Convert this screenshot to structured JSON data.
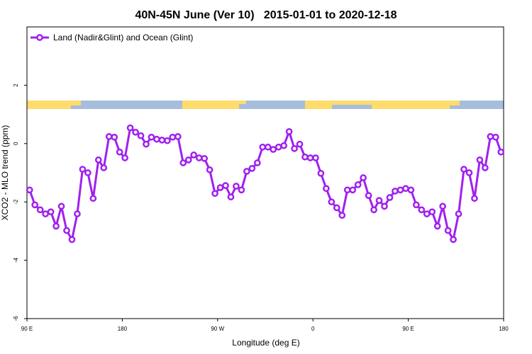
{
  "chart_data": {
    "type": "line",
    "title": "40N-45N June (Ver 10)   2015-01-01 to 2020-12-18",
    "xlabel": "Longitude (deg E)",
    "ylabel": "XCO2 - MLO trend (ppm)",
    "x": [
      92.5,
      97.5,
      102.5,
      107.5,
      112.5,
      117.5,
      122.5,
      127.5,
      132.5,
      137.5,
      142.5,
      147.5,
      152.5,
      157.5,
      162.5,
      167.5,
      172.5,
      177.5,
      182.5,
      187.5,
      192.5,
      197.5,
      202.5,
      207.5,
      212.5,
      217.5,
      222.5,
      227.5,
      232.5,
      237.5,
      242.5,
      247.5,
      252.5,
      257.5,
      262.5,
      267.5,
      272.5,
      277.5,
      282.5,
      287.5,
      292.5,
      297.5,
      302.5,
      307.5,
      312.5,
      317.5,
      322.5,
      327.5,
      332.5,
      337.5,
      342.5,
      347.5,
      352.5,
      357.5,
      362.5,
      367.5,
      372.5,
      377.5,
      382.5,
      387.5,
      392.5,
      397.5,
      402.5,
      407.5,
      412.5,
      417.5,
      422.5,
      427.5,
      432.5,
      437.5,
      442.5,
      447.5,
      452.5,
      457.5,
      462.5,
      467.5,
      472.5,
      477.5,
      482.5,
      487.5,
      492.5,
      497.5,
      502.5,
      507.5,
      512.5,
      517.5,
      522.5,
      527.5,
      532.5,
      537.5
    ],
    "series": [
      {
        "name": "Land (Nadir&Glint) and Ocean (Glint)",
        "color": "#a020f0",
        "values": [
          -1.59,
          -2.1,
          -2.27,
          -2.41,
          -2.34,
          -2.83,
          -2.15,
          -2.98,
          -3.29,
          -2.41,
          -0.88,
          -1.0,
          -1.88,
          -0.56,
          -0.83,
          0.24,
          0.22,
          -0.29,
          -0.49,
          0.54,
          0.39,
          0.27,
          -0.02,
          0.22,
          0.15,
          0.12,
          0.1,
          0.22,
          0.24,
          -0.66,
          -0.56,
          -0.39,
          -0.49,
          -0.51,
          -0.9,
          -1.71,
          -1.51,
          -1.44,
          -1.83,
          -1.46,
          -1.59,
          -0.95,
          -0.85,
          -0.66,
          -0.12,
          -0.12,
          -0.2,
          -0.12,
          -0.07,
          0.41,
          -0.17,
          -0.02,
          -0.46,
          -0.49,
          -0.49,
          -1.02,
          -1.54,
          -2.0,
          -2.2,
          -2.46,
          -1.59,
          -1.59,
          -1.41,
          -1.17,
          -1.78,
          -2.27,
          -1.95,
          -2.15,
          -1.85,
          -1.63,
          -1.59,
          -1.54,
          -1.59,
          -2.1,
          -2.27,
          -2.41,
          -2.34,
          -2.83,
          -2.15,
          -2.98,
          -3.29,
          -2.41,
          -0.88,
          -1.0,
          -1.88,
          -0.56,
          -0.83,
          0.24,
          0.22,
          -0.29
        ]
      }
    ],
    "xlim": [
      90,
      540
    ],
    "xticks": [
      {
        "value": 90,
        "label": "90 E"
      },
      180,
      {
        "value": 270,
        "label": "90 W"
      },
      {
        "value": 360,
        "label": "0"
      },
      {
        "value": 450,
        "label": "90 E"
      },
      {
        "value": 540,
        "label": "180"
      }
    ],
    "ylim": [
      -6,
      4
    ],
    "yticks": [
      -6,
      -4,
      -2,
      0,
      2
    ],
    "grid": false,
    "legend": "top-left"
  }
}
